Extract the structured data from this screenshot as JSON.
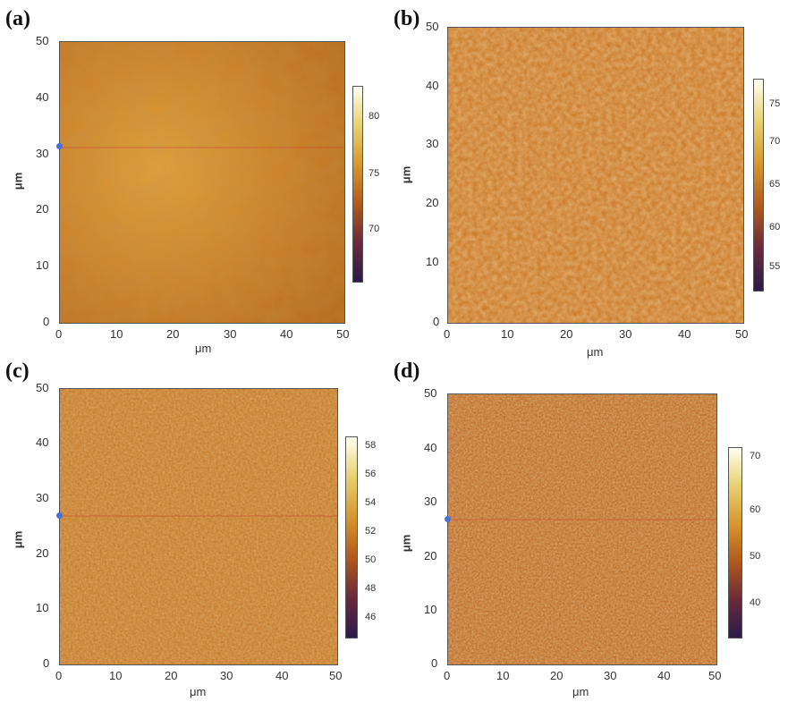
{
  "panels": [
    {
      "label": "(a)",
      "y_ticks": [
        "50",
        "40",
        "30",
        "20",
        "10",
        "0"
      ],
      "x_ticks": [
        "0",
        "10",
        "20",
        "30",
        "40",
        "50"
      ],
      "axis_unit": "μm",
      "colorbar_ticks": [
        "80",
        "75",
        "70"
      ]
    },
    {
      "label": "(b)",
      "y_ticks": [
        "50",
        "40",
        "30",
        "20",
        "10",
        "0"
      ],
      "x_ticks": [
        "0",
        "10",
        "20",
        "30",
        "40",
        "50"
      ],
      "axis_unit": "μm",
      "colorbar_ticks": [
        "75",
        "70",
        "65",
        "60",
        "55"
      ]
    },
    {
      "label": "(c)",
      "y_ticks": [
        "50",
        "40",
        "30",
        "20",
        "10",
        "0"
      ],
      "x_ticks": [
        "0",
        "10",
        "20",
        "30",
        "40",
        "50"
      ],
      "axis_unit": "μm",
      "colorbar_ticks": [
        "58",
        "56",
        "54",
        "52",
        "50",
        "48",
        "46"
      ]
    },
    {
      "label": "(d)",
      "y_ticks": [
        "50",
        "40",
        "30",
        "20",
        "10",
        "0"
      ],
      "x_ticks": [
        "0",
        "10",
        "20",
        "30",
        "40",
        "50"
      ],
      "axis_unit": "μm",
      "colorbar_ticks": [
        "70",
        "60",
        "50",
        "40"
      ]
    }
  ],
  "colors": {
    "surface_base": "#c8781e",
    "surface_light": "#e3a23c",
    "surface_dark": "#7a3c12",
    "marker": "#4a6fd6"
  }
}
